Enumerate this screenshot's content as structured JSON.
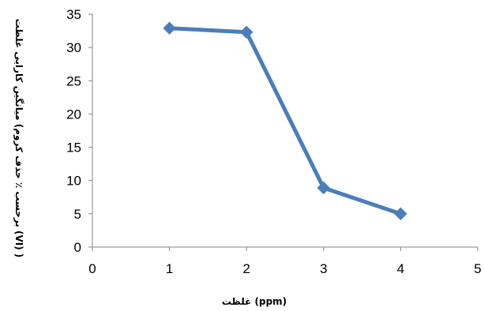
{
  "chart_data": {
    "type": "line",
    "title": "",
    "xlabel": "غلظت (ppm)",
    "ylabel": "میانگین کارایی غلظت (برحسب ٪ حذف کروم (VI) )",
    "x": [
      1,
      2,
      3,
      4
    ],
    "series": [
      {
        "values": [
          32.9,
          32.3,
          8.9,
          5.0
        ],
        "color": "#4a7ebb",
        "marker": "diamond"
      }
    ],
    "xlim": [
      0,
      5
    ],
    "ylim": [
      0,
      35
    ],
    "xticks": [
      0,
      1,
      2,
      3,
      4,
      5
    ],
    "yticks": [
      0,
      5,
      10,
      15,
      20,
      25,
      30,
      35
    ],
    "grid": false,
    "legend": "none"
  }
}
